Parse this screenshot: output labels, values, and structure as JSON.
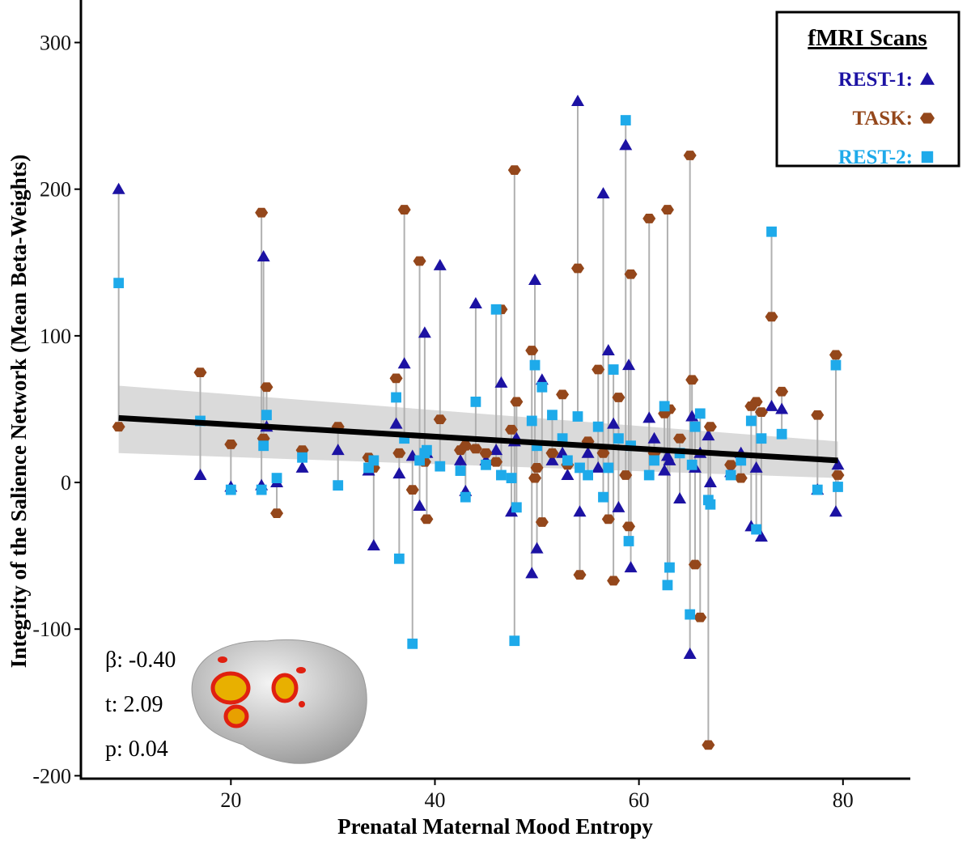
{
  "chart_data": {
    "type": "scatter",
    "x_label": "Prenatal Maternal Mood Entropy",
    "y_label": "Integrity of the Salience Network (Mean Beta-Weights)",
    "xlim": [
      5.3,
      86.6
    ],
    "ylim": [
      -202,
      329
    ],
    "xticks": [
      20,
      40,
      60,
      80
    ],
    "yticks": [
      -200,
      -100,
      0,
      100,
      200,
      300
    ],
    "legend_title": "fMRI Scans",
    "legend_position": "top-right",
    "connector_color": "#b0b0b0",
    "x": [
      9,
      17,
      20,
      23,
      23.2,
      23.5,
      24.5,
      27,
      30.5,
      33.5,
      34,
      36.2,
      36.5,
      37,
      37.8,
      38.5,
      39,
      39.2,
      40.5,
      42.5,
      43,
      44,
      45,
      46,
      46.5,
      47.5,
      47.8,
      48,
      49.5,
      49.8,
      50,
      50.5,
      51.5,
      52.5,
      53,
      54,
      54.2,
      55,
      56,
      56.5,
      57,
      57.5,
      58,
      58.7,
      59,
      59.2,
      61,
      61.5,
      62.5,
      62.8,
      63,
      64,
      65,
      65.2,
      65.5,
      66,
      66.8,
      67,
      69,
      70,
      71,
      71.5,
      72,
      73,
      74,
      77.5,
      79.3,
      79.5
    ],
    "series": [
      {
        "name": "REST-1:",
        "color": "#1c12a3",
        "marker": "triangle",
        "values": [
          200,
          5,
          -3,
          -2,
          154,
          38,
          0,
          10,
          22,
          8,
          -43,
          40,
          6,
          81,
          18,
          -16,
          102,
          20,
          148,
          15,
          -6,
          122,
          15,
          22,
          68,
          -20,
          28,
          30,
          -62,
          138,
          -45,
          70,
          15,
          20,
          5,
          260,
          -20,
          20,
          10,
          197,
          90,
          40,
          -17,
          230,
          80,
          -58,
          44,
          30,
          8,
          18,
          15,
          -11,
          -117,
          45,
          10,
          20,
          32,
          0,
          7,
          20,
          -30,
          10,
          -37,
          52,
          50,
          -5,
          -20,
          12
        ]
      },
      {
        "name": "TASK:",
        "color": "#94471b",
        "marker": "circle",
        "values": [
          38,
          75,
          26,
          184,
          30,
          65,
          -21,
          22,
          38,
          17,
          10,
          71,
          20,
          186,
          -5,
          151,
          14,
          -25,
          43,
          22,
          25,
          23,
          20,
          14,
          118,
          36,
          213,
          55,
          90,
          3,
          10,
          -27,
          20,
          60,
          12,
          146,
          -63,
          28,
          77,
          20,
          -25,
          -67,
          58,
          5,
          -30,
          142,
          180,
          20,
          47,
          186,
          50,
          30,
          223,
          70,
          -56,
          -92,
          -179,
          38,
          12,
          3,
          52,
          55,
          48,
          113,
          62,
          46,
          87,
          5
        ]
      },
      {
        "name": "REST-2:",
        "color": "#1eaaea",
        "marker": "square",
        "values": [
          136,
          42,
          -5,
          -5,
          25,
          46,
          3,
          17,
          -2,
          10,
          15,
          58,
          -52,
          30,
          -110,
          15,
          20,
          22,
          11,
          8,
          -10,
          55,
          12,
          118,
          5,
          3,
          -108,
          -17,
          42,
          80,
          25,
          65,
          46,
          30,
          15,
          45,
          10,
          5,
          38,
          -10,
          10,
          77,
          30,
          247,
          -40,
          25,
          5,
          15,
          52,
          -70,
          -58,
          20,
          -90,
          12,
          38,
          47,
          -12,
          -15,
          5,
          15,
          42,
          -32,
          30,
          171,
          33,
          -5,
          80,
          -3
        ]
      }
    ],
    "fit": {
      "color": "#000000",
      "band_color": "#d3d3d3",
      "x": [
        9,
        79.5
      ],
      "y": [
        44,
        15
      ],
      "ci_lower": [
        20,
        3
      ],
      "ci_upper": [
        66,
        28
      ]
    },
    "annotations": [
      "β: -0.40",
      "t: 2.09",
      "p: 0.04"
    ]
  }
}
